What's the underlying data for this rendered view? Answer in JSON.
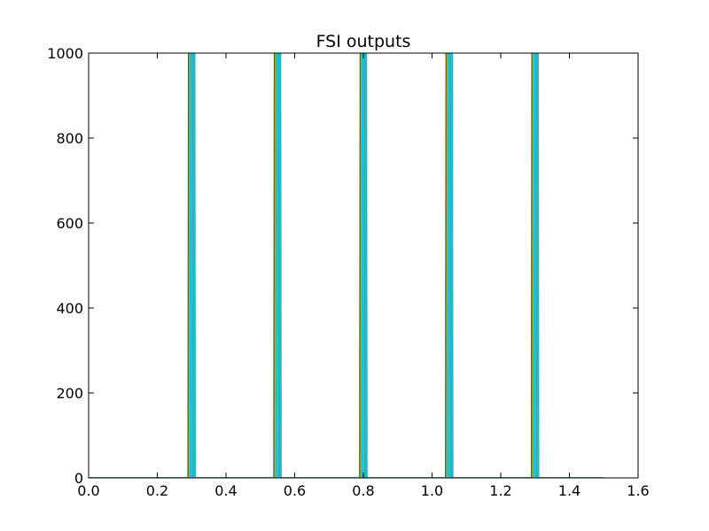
{
  "chart_data": {
    "type": "line",
    "title": "FSI outputs",
    "xlabel": "",
    "ylabel": "",
    "xlim": [
      0.0,
      1.6
    ],
    "ylim": [
      0,
      1000
    ],
    "xticks": [
      0.0,
      0.2,
      0.4,
      0.6,
      0.8,
      1.0,
      1.2,
      1.4,
      1.6
    ],
    "yticks": [
      0,
      200,
      400,
      600,
      800,
      1000
    ],
    "xtick_labels": [
      "0.0",
      "0.2",
      "0.4",
      "0.6",
      "0.8",
      "1.0",
      "1.2",
      "1.4",
      "1.6"
    ],
    "ytick_labels": [
      "0",
      "200",
      "400",
      "600",
      "800",
      "1000"
    ],
    "grid": false,
    "x_extent": [
      0.0,
      1.5
    ],
    "spike_centers": [
      0.3,
      0.55,
      0.8,
      1.05,
      1.3
    ],
    "spike_width": 0.012,
    "spike_peak": 1000,
    "series_colors": [
      "#4c4c4c",
      "#7f7f00",
      "#bcbd22",
      "#17becf"
    ],
    "axis_color": "#000000",
    "background": "#ffffff"
  }
}
